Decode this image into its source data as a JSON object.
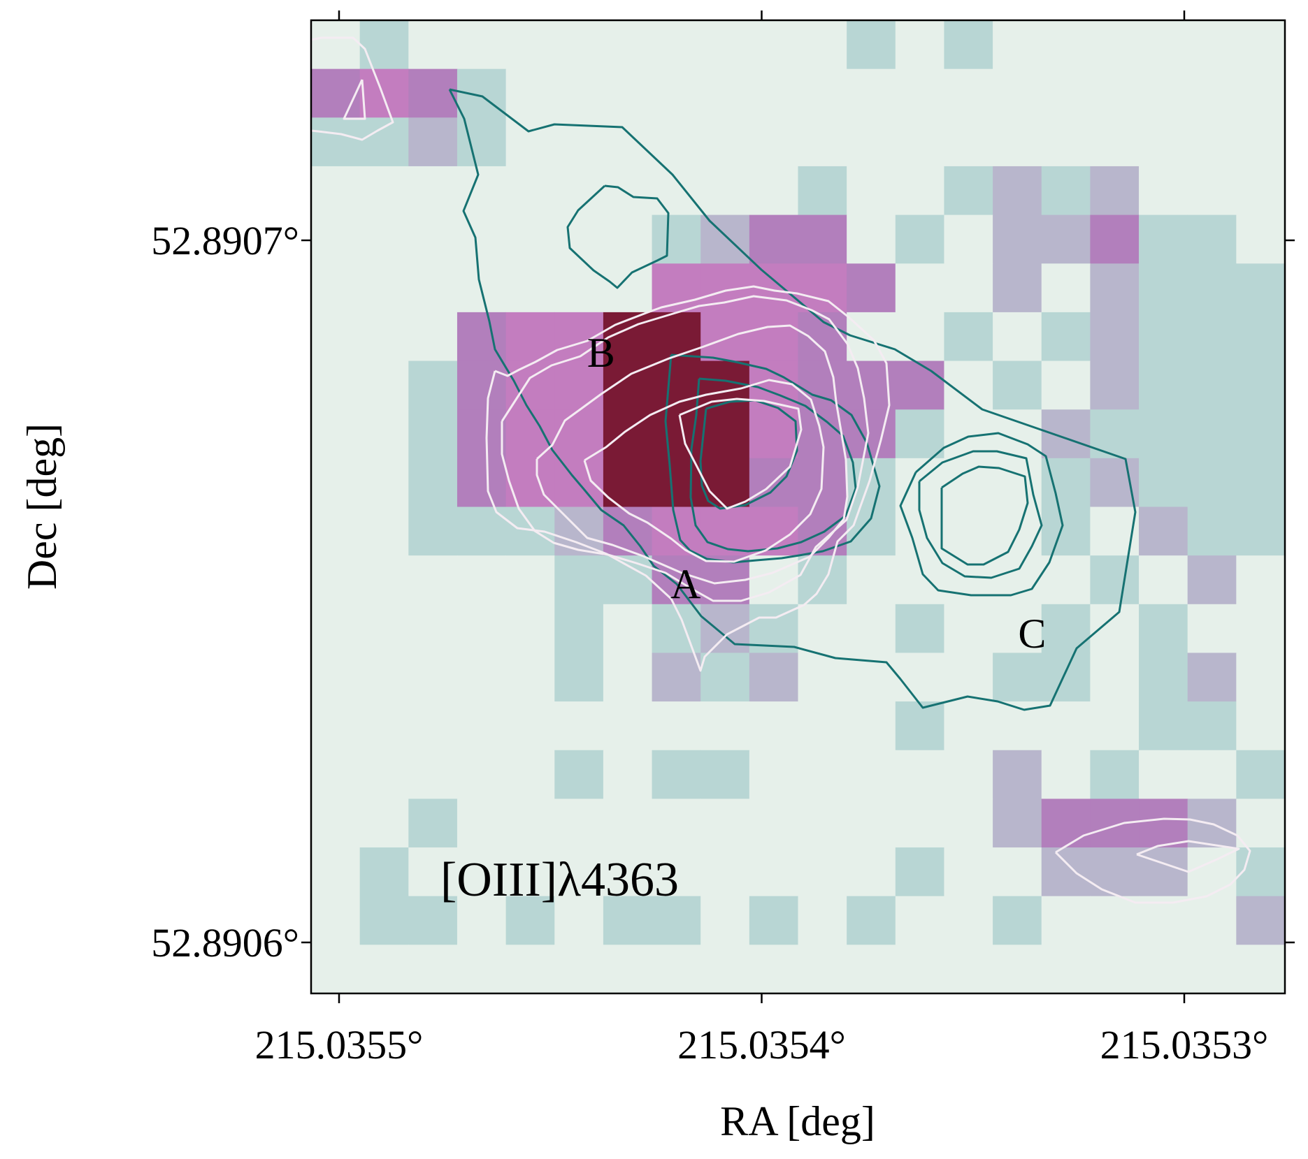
{
  "chart_data": {
    "type": "heatmap",
    "title": "",
    "xlabel": "RA [deg]",
    "ylabel": "Dec [deg]",
    "x_ticks": [
      {
        "value": 215.0355,
        "label": "215.0355°"
      },
      {
        "value": 215.0354,
        "label": "215.0354°"
      },
      {
        "value": 215.0353,
        "label": "215.0353°"
      }
    ],
    "y_ticks": [
      {
        "value": 52.8907,
        "label": "52.8907°"
      },
      {
        "value": 52.8906,
        "label": "52.8906°"
      }
    ],
    "annotations": [
      {
        "text": "A",
        "ra": 215.035418,
        "dec": 52.890651
      },
      {
        "text": "B",
        "ra": 215.035438,
        "dec": 52.890684
      },
      {
        "text": "C",
        "ra": 215.035336,
        "dec": 52.890644
      }
    ],
    "line_label": "[OIII]λ4363",
    "colormap": {
      "low": "#e6f0ea",
      "mid1": "#b8d6d4",
      "mid2": "#b8b6cc",
      "high1": "#c37dbf",
      "high2": "#7a1a35"
    },
    "contour_colors": {
      "white": "#f4ecf2",
      "teal": "#167272"
    },
    "grid": false,
    "legend": "none"
  }
}
